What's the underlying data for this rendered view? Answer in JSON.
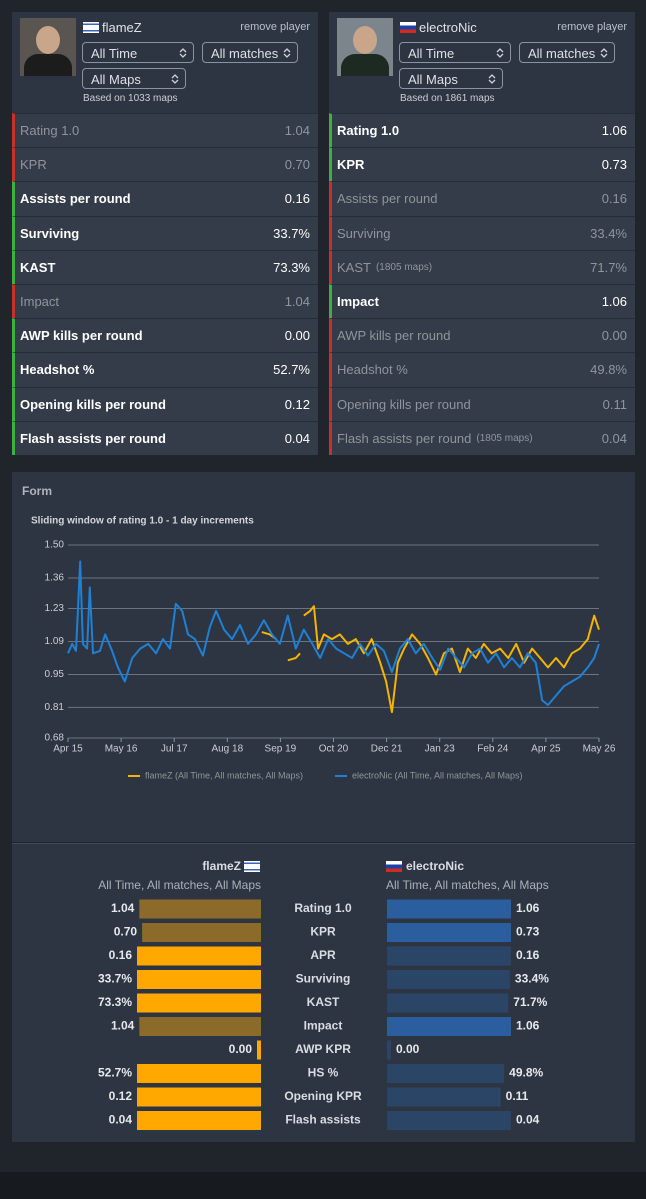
{
  "players": [
    {
      "name": "flameZ",
      "remove": "remove player",
      "filters": [
        "All Time",
        "All matches",
        "All Maps"
      ],
      "based_on": "Based on 1033 maps",
      "stats": [
        {
          "label": "Rating 1.0",
          "value": "1.04",
          "better": false
        },
        {
          "label": "KPR",
          "value": "0.70",
          "better": false
        },
        {
          "label": "Assists per round",
          "value": "0.16",
          "better": true
        },
        {
          "label": "Surviving",
          "value": "33.7%",
          "better": true
        },
        {
          "label": "KAST",
          "value": "73.3%",
          "better": true
        },
        {
          "label": "Impact",
          "value": "1.04",
          "better": false
        },
        {
          "label": "AWP kills per round",
          "value": "0.00",
          "better": true
        },
        {
          "label": "Headshot %",
          "value": "52.7%",
          "better": true
        },
        {
          "label": "Opening kills per round",
          "value": "0.12",
          "better": true
        },
        {
          "label": "Flash assists per round",
          "value": "0.04",
          "better": true
        }
      ]
    },
    {
      "name": "electroNic",
      "remove": "remove player",
      "filters": [
        "All Time",
        "All matches",
        "All Maps"
      ],
      "based_on": "Based on 1861 maps",
      "stats": [
        {
          "label": "Rating 1.0",
          "value": "1.06",
          "better": true
        },
        {
          "label": "KPR",
          "value": "0.73",
          "better": true
        },
        {
          "label": "Assists per round",
          "value": "0.16",
          "better": false
        },
        {
          "label": "Surviving",
          "value": "33.4%",
          "better": false
        },
        {
          "label": "KAST",
          "note": "(1805 maps)",
          "value": "71.7%",
          "better": false
        },
        {
          "label": "Impact",
          "value": "1.06",
          "better": true
        },
        {
          "label": "AWP kills per round",
          "value": "0.00",
          "better": false
        },
        {
          "label": "Headshot %",
          "value": "49.8%",
          "better": false
        },
        {
          "label": "Opening kills per round",
          "value": "0.11",
          "better": false
        },
        {
          "label": "Flash assists per round",
          "note": "(1805 maps)",
          "value": "0.04",
          "better": false
        }
      ]
    }
  ],
  "form": {
    "title": "Form"
  },
  "chart_data": [
    {
      "type": "line",
      "title": "Sliding window of rating 1.0 - 1 day increments",
      "xlim": [
        0,
        10
      ],
      "xticks": [
        {
          "value": 0,
          "label": "Apr 15"
        },
        {
          "value": 1,
          "label": "May 16"
        },
        {
          "value": 2,
          "label": "Jul 17"
        },
        {
          "value": 3,
          "label": "Aug 18"
        },
        {
          "value": 4,
          "label": "Sep 19"
        },
        {
          "value": 5,
          "label": "Oct 20"
        },
        {
          "value": 6,
          "label": "Dec 21"
        },
        {
          "value": 7,
          "label": "Jan 23"
        },
        {
          "value": 8,
          "label": "Feb 24"
        },
        {
          "value": 9,
          "label": "Apr 25"
        },
        {
          "value": 10,
          "label": "May 26"
        }
      ],
      "ylim": [
        0.68,
        1.5
      ],
      "yticks": [
        0.68,
        0.81,
        0.95,
        1.09,
        1.23,
        1.36,
        {
          "value": 1.5,
          "label": "1.50"
        }
      ],
      "grid": true,
      "legend": "bottom",
      "series": [
        {
          "name": "flameZ (All Time, All matches, All Maps)",
          "color": "#f5b400",
          "x": [
            3.65,
            3.8,
            3.92,
            null,
            4.14,
            4.29,
            4.37,
            null,
            4.44,
            4.56,
            4.63,
            4.71,
            4.82,
            4.97,
            5.12,
            5.27,
            5.42,
            5.57,
            5.72,
            5.88,
            5.99,
            6.1,
            6.21,
            6.33,
            6.48,
            6.63,
            6.78,
            6.93,
            7.08,
            7.23,
            7.38,
            7.53,
            7.68,
            7.83,
            7.98,
            8.14,
            8.29,
            8.44,
            8.59,
            8.74,
            8.89,
            9.04,
            9.19,
            9.34,
            9.49,
            9.64,
            9.79,
            9.91,
            10
          ],
          "values": [
            1.13,
            1.12,
            1.1,
            null,
            1.01,
            1.02,
            1.04,
            null,
            1.2,
            1.22,
            1.24,
            1.06,
            1.12,
            1.1,
            1.12,
            1.08,
            1.1,
            1.04,
            1.1,
            1.0,
            0.92,
            0.79,
            1.0,
            1.06,
            1.12,
            1.08,
            1.02,
            0.95,
            1.04,
            1.06,
            0.96,
            1.06,
            1.02,
            1.08,
            1.04,
            1.06,
            1.02,
            1.08,
            1.0,
            1.06,
            1.02,
            0.98,
            1.02,
            0.98,
            1.04,
            1.06,
            1.1,
            1.2,
            1.14
          ]
        },
        {
          "name": "electroNic (All Time, All matches, All Maps)",
          "color": "#1f80d6",
          "x": [
            0,
            0.08,
            0.15,
            0.23,
            0.28,
            0.36,
            0.41,
            0.47,
            0.6,
            0.7,
            0.83,
            0.94,
            1.07,
            1.21,
            1.36,
            1.51,
            1.66,
            1.79,
            1.92,
            2.03,
            2.15,
            2.26,
            2.39,
            2.54,
            2.67,
            2.79,
            2.94,
            3.09,
            3.24,
            3.39,
            3.54,
            3.69,
            3.84,
            3.99,
            4.14,
            4.29,
            4.44,
            4.6,
            4.75,
            4.9,
            5.05,
            5.2,
            5.35,
            5.5,
            5.65,
            5.8,
            5.95,
            6.1,
            6.25,
            6.4,
            6.55,
            6.7,
            6.86,
            7.01,
            7.16,
            7.31,
            7.46,
            7.61,
            7.76,
            7.91,
            8.06,
            8.21,
            8.36,
            8.51,
            8.66,
            8.81,
            8.93,
            9.04,
            9.19,
            9.34,
            9.49,
            9.64,
            9.79,
            9.91,
            10
          ],
          "values": [
            1.04,
            1.08,
            1.05,
            1.43,
            1.08,
            1.06,
            1.32,
            1.04,
            1.05,
            1.12,
            1.05,
            0.98,
            0.92,
            1.02,
            1.06,
            1.08,
            1.04,
            1.1,
            1.06,
            1.25,
            1.22,
            1.12,
            1.1,
            1.03,
            1.15,
            1.22,
            1.14,
            1.1,
            1.16,
            1.08,
            1.12,
            1.18,
            1.12,
            1.08,
            1.2,
            1.06,
            1.14,
            1.08,
            1.02,
            1.1,
            1.06,
            1.04,
            1.02,
            1.08,
            1.03,
            1.08,
            1.05,
            0.96,
            1.06,
            1.1,
            1.04,
            1.08,
            1.02,
            0.97,
            1.06,
            1.02,
            0.98,
            1.04,
            1.06,
            1.0,
            1.04,
            0.98,
            1.02,
            0.98,
            1.04,
            1.0,
            0.84,
            0.82,
            0.86,
            0.9,
            0.92,
            0.94,
            0.98,
            1.02,
            1.08
          ]
        }
      ]
    },
    {
      "type": "bar",
      "orientation": "horizontal",
      "categories": [
        "Rating 1.0",
        "KPR",
        "APR",
        "Surviving",
        "KAST",
        "Impact",
        "AWP KPR",
        "HS %",
        "Opening KPR",
        "Flash assists"
      ],
      "series": [
        {
          "name": "flameZ",
          "subtitle": "All Time, All matches, All Maps",
          "color": "#ffa800",
          "muted_color": "#8c6a2a",
          "values": [
            1.04,
            0.7,
            0.16,
            33.7,
            73.3,
            1.04,
            0,
            52.7,
            0.12,
            0.04
          ],
          "value_labels": [
            "1.04",
            "0.70",
            "0.16",
            "33.7%",
            "73.3%",
            "1.04",
            "0.00",
            "52.7%",
            "0.12",
            "0.04"
          ]
        },
        {
          "name": "electroNic",
          "subtitle": "All Time, All matches, All Maps",
          "color": "#2a5e9e",
          "muted_color": "#2b4567",
          "values": [
            1.06,
            0.73,
            0.16,
            33.4,
            71.7,
            1.06,
            0,
            49.8,
            0.11,
            0.04
          ],
          "value_labels": [
            "1.06",
            "0.73",
            "0.16",
            "33.4%",
            "71.7%",
            "1.06",
            "0.00",
            "49.8%",
            "0.11",
            "0.04"
          ]
        }
      ]
    }
  ]
}
